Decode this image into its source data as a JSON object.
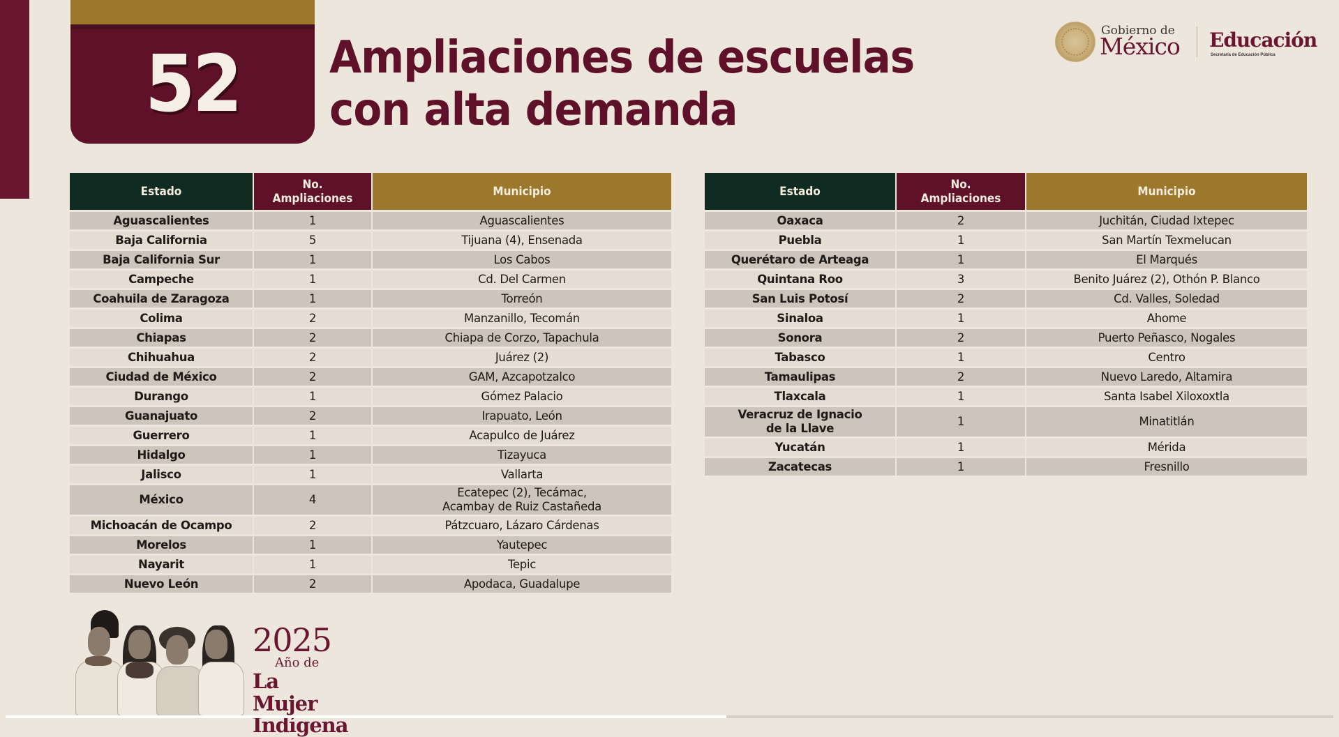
{
  "badge": {
    "number": "52"
  },
  "title": {
    "line1": "Ampliaciones de escuelas",
    "line2": "con alta demanda"
  },
  "logo": {
    "gob_small": "Gobierno de",
    "gob_big": "México",
    "edu_big": "Educación",
    "edu_small": "Secretaría de Educación Pública",
    "seal_icon": "coat-of-arms-seal"
  },
  "colors": {
    "maroon": "#5e1128",
    "gold": "#9c782d",
    "green": "#0f2b22",
    "background": "#ece6dd",
    "row_dark": "#cdc5bb",
    "row_light": "#e5ddd3"
  },
  "table": {
    "headers": {
      "estado": "Estado",
      "num_line1": "No.",
      "num_line2": "Ampliaciones",
      "municipio": "Municipio"
    },
    "left_rows": [
      {
        "estado": "Aguascalientes",
        "num": "1",
        "municipio": [
          "Aguascalientes"
        ]
      },
      {
        "estado": "Baja California",
        "num": "5",
        "municipio": [
          "Tijuana (4), Ensenada"
        ]
      },
      {
        "estado": "Baja California Sur",
        "num": "1",
        "municipio": [
          "Los Cabos"
        ]
      },
      {
        "estado": "Campeche",
        "num": "1",
        "municipio": [
          "Cd. Del Carmen"
        ]
      },
      {
        "estado": "Coahuila de Zaragoza",
        "num": "1",
        "municipio": [
          "Torreón"
        ]
      },
      {
        "estado": "Colima",
        "num": "2",
        "municipio": [
          "Manzanillo, Tecomán"
        ]
      },
      {
        "estado": "Chiapas",
        "num": "2",
        "municipio": [
          "Chiapa de Corzo, Tapachula"
        ]
      },
      {
        "estado": "Chihuahua",
        "num": "2",
        "municipio": [
          "Juárez (2)"
        ]
      },
      {
        "estado": "Ciudad de México",
        "num": "2",
        "municipio": [
          "GAM, Azcapotzalco"
        ]
      },
      {
        "estado": "Durango",
        "num": "1",
        "municipio": [
          "Gómez Palacio"
        ]
      },
      {
        "estado": "Guanajuato",
        "num": "2",
        "municipio": [
          "Irapuato, León"
        ]
      },
      {
        "estado": "Guerrero",
        "num": "1",
        "municipio": [
          "Acapulco de Juárez"
        ]
      },
      {
        "estado": "Hidalgo",
        "num": "1",
        "municipio": [
          "Tizayuca"
        ]
      },
      {
        "estado": "Jalisco",
        "num": "1",
        "municipio": [
          "Vallarta"
        ]
      },
      {
        "estado": "México",
        "num": "4",
        "municipio": [
          "Ecatepec (2), Tecámac,",
          "Acambay de Ruiz Castañeda"
        ]
      },
      {
        "estado": "Michoacán de Ocampo",
        "num": "2",
        "municipio": [
          "Pátzcuaro, Lázaro Cárdenas"
        ]
      },
      {
        "estado": "Morelos",
        "num": "1",
        "municipio": [
          "Yautepec"
        ]
      },
      {
        "estado": "Nayarit",
        "num": "1",
        "municipio": [
          "Tepic"
        ]
      },
      {
        "estado": "Nuevo León",
        "num": "2",
        "municipio": [
          "Apodaca, Guadalupe"
        ]
      }
    ],
    "right_rows": [
      {
        "estado": "Oaxaca",
        "num": "2",
        "municipio": [
          "Juchitán, Ciudad Ixtepec"
        ]
      },
      {
        "estado": "Puebla",
        "num": "1",
        "municipio": [
          "San Martín Texmelucan"
        ]
      },
      {
        "estado": "Querétaro de Arteaga",
        "num": "1",
        "municipio": [
          "El Marqués"
        ]
      },
      {
        "estado": "Quintana Roo",
        "num": "3",
        "municipio": [
          "Benito Juárez (2), Othón P. Blanco"
        ]
      },
      {
        "estado": "San Luis Potosí",
        "num": "2",
        "municipio": [
          "Cd. Valles, Soledad"
        ]
      },
      {
        "estado": "Sinaloa",
        "num": "1",
        "municipio": [
          "Ahome"
        ]
      },
      {
        "estado": "Sonora",
        "num": "2",
        "municipio": [
          "Puerto Peñasco, Nogales"
        ]
      },
      {
        "estado": "Tabasco",
        "num": "1",
        "municipio": [
          "Centro"
        ]
      },
      {
        "estado": "Tamaulipas",
        "num": "2",
        "municipio": [
          "Nuevo Laredo, Altamira"
        ]
      },
      {
        "estado": "Tlaxcala",
        "num": "1",
        "municipio": [
          "Santa Isabel Xiloxoxtla"
        ]
      },
      {
        "estado": [
          "Veracruz de Ignacio",
          "de la Llave"
        ],
        "num": "1",
        "municipio": [
          "Minatitlán"
        ]
      },
      {
        "estado": "Yucatán",
        "num": "1",
        "municipio": [
          "Mérida"
        ]
      },
      {
        "estado": "Zacatecas",
        "num": "1",
        "municipio": [
          "Fresnillo"
        ]
      }
    ]
  },
  "footer": {
    "year": "2025",
    "line2": "Año de",
    "line3": "La Mujer",
    "line4": "Indígena",
    "illustration": "indigenous-women-illustration"
  },
  "player": {
    "progress_percent": 54.3
  }
}
